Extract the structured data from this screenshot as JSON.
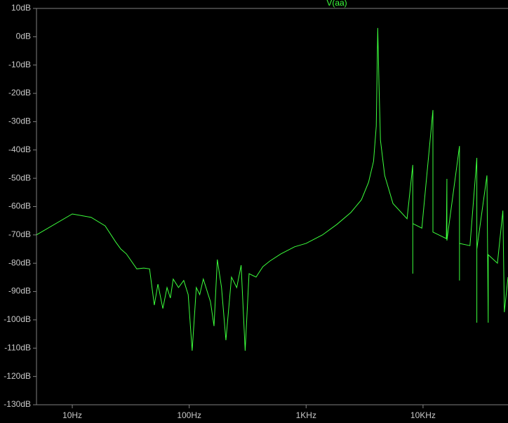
{
  "chart_data": {
    "type": "line",
    "xscale": "log",
    "x": [
      4.94,
      10,
      14.5,
      19.1,
      23.5,
      26,
      29,
      35.6,
      40.9,
      45.8,
      50.3,
      54,
      59.5,
      64.6,
      69,
      73,
      81,
      89.8,
      98,
      106,
      115,
      123,
      132,
      152,
      163,
      174,
      189,
      206,
      230,
      255,
      278,
      301,
      325,
      373,
      427,
      491,
      608,
      797,
      1000,
      1380,
      1831,
      2411,
      2970,
      3421,
      3774,
      3980,
      4098,
      4200,
      4325,
      4700,
      5530,
      7300,
      8170,
      8170,
      8170,
      9770,
      12150,
      12150,
      12150,
      15820,
      16000,
      16000,
      20500,
      20500,
      20500,
      25200,
      28850,
      28850,
      28850,
      35200,
      36100,
      36100,
      43300,
      48200,
      49600,
      53300
    ],
    "series": [
      {
        "name": "V(aa)",
        "color": "#3cff3c",
        "values": [
          -70,
          -62.6,
          -63.8,
          -66.8,
          -72.5,
          -75,
          -76.7,
          -82,
          -81.7,
          -82,
          -94.8,
          -87.4,
          -96,
          -88.6,
          -92.3,
          -85.6,
          -88.6,
          -86.1,
          -91.1,
          -110.9,
          -88.6,
          -91.1,
          -85.6,
          -93.6,
          -102.2,
          -78.7,
          -88.6,
          -107.2,
          -84.9,
          -88.6,
          -80.7,
          -110.9,
          -83.7,
          -84.9,
          -81.2,
          -79.2,
          -76.7,
          -74.2,
          -73,
          -70,
          -66.3,
          -62.1,
          -57.6,
          -51.4,
          -44,
          -31.6,
          3.1,
          -16.8,
          -36.6,
          -49,
          -58.9,
          -64.3,
          -45.3,
          -83.7,
          -66,
          -67.6,
          -25.9,
          -68.8,
          -69,
          -71.3,
          -50.2,
          -72,
          -38.6,
          -86.1,
          -73,
          -73.8,
          -42.8,
          -101,
          -75,
          -49,
          -101,
          -77,
          -80,
          -61.4,
          -97.3,
          -84.9
        ]
      }
    ],
    "xlim": [
      4.94,
      53300
    ],
    "ylim": [
      -130,
      10
    ],
    "xticks": [
      {
        "value": 10,
        "label": "10Hz"
      },
      {
        "value": 100,
        "label": "100Hz"
      },
      {
        "value": 1000,
        "label": "1KHz"
      },
      {
        "value": 10000,
        "label": "10KHz"
      }
    ],
    "yticks": [
      {
        "value": 10,
        "label": "10dB"
      },
      {
        "value": 0,
        "label": "0dB"
      },
      {
        "value": -10,
        "label": "-10dB"
      },
      {
        "value": -20,
        "label": "-20dB"
      },
      {
        "value": -30,
        "label": "-30dB"
      },
      {
        "value": -40,
        "label": "-40dB"
      },
      {
        "value": -50,
        "label": "-50dB"
      },
      {
        "value": -60,
        "label": "-60dB"
      },
      {
        "value": -70,
        "label": "-70dB"
      },
      {
        "value": -80,
        "label": "-80dB"
      },
      {
        "value": -90,
        "label": "-90dB"
      },
      {
        "value": -100,
        "label": "-100dB"
      },
      {
        "value": -110,
        "label": "-110dB"
      },
      {
        "value": -120,
        "label": "-120dB"
      },
      {
        "value": -130,
        "label": "-130dB"
      }
    ],
    "grid": false
  }
}
